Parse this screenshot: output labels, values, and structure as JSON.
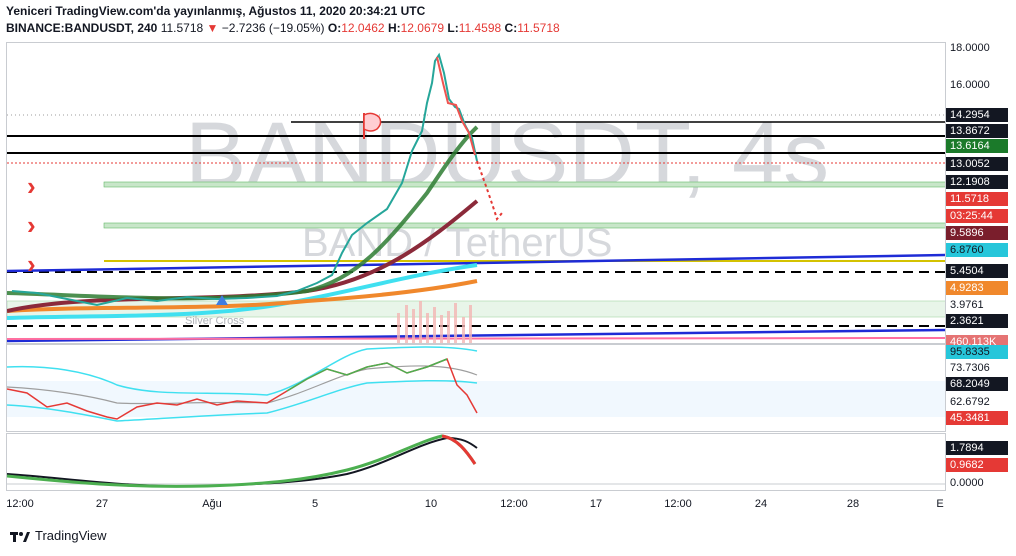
{
  "header": {
    "publish_line": "Yeniceri TradingView.com'da yayınlanmış, Ağustos 11, 2020 20:34:21 UTC",
    "symbol": "BINANCE:BANDUSDT, 240",
    "last": "11.5718",
    "change_arrow": "▼",
    "change": "−2.7236 (−19.05%)",
    "o_label": "O:",
    "o_value": "12.0462",
    "h_label": "H:",
    "h_value": "12.0679",
    "l_label": "L:",
    "l_value": "11.4598",
    "c_label": "C:",
    "c_value": "11.5718"
  },
  "watermark": {
    "symbol": "BANDUSDT, 4s",
    "pair": "BAND / TetherUS"
  },
  "price_axis": {
    "ticks": [
      "18.0000",
      "16.0000"
    ],
    "labels": [
      {
        "text": "14.2954",
        "bg": "#131722",
        "fg": "#ffffff"
      },
      {
        "text": "13.8672",
        "bg": "#131722",
        "fg": "#ffffff"
      },
      {
        "text": "13.6164",
        "bg": "#1b7a2a",
        "fg": "#ffffff"
      },
      {
        "text": "13.0052",
        "bg": "#131722",
        "fg": "#ffffff"
      },
      {
        "text": "12.1908",
        "bg": "#131722",
        "fg": "#ffffff"
      },
      {
        "text": "11.5718",
        "bg": "#e53935",
        "fg": "#ffffff"
      },
      {
        "text": "03:25:44",
        "bg": "#e53935",
        "fg": "#ffffff"
      },
      {
        "text": "9.5896",
        "bg": "#7a1e2c",
        "fg": "#ffffff"
      },
      {
        "text": "6.8760",
        "bg": "#26c6da",
        "fg": "#131722"
      },
      {
        "text": "5.4504",
        "bg": "#131722",
        "fg": "#ffffff"
      },
      {
        "text": "4.9283",
        "bg": "#f0882c",
        "fg": "#ffffff"
      },
      {
        "text": "3.9761",
        "bg": "#ffffff",
        "fg": "#131722"
      },
      {
        "text": "2.3621",
        "bg": "#131722",
        "fg": "#ffffff"
      },
      {
        "text": "460.113K",
        "bg": "#e57373",
        "fg": "#ffffff"
      }
    ]
  },
  "rsi_axis": {
    "labels": [
      {
        "text": "95.8335",
        "bg": "#26c6da",
        "fg": "#131722"
      },
      {
        "text": "73.7306",
        "bg": "#ffffff",
        "fg": "#131722"
      },
      {
        "text": "68.2049",
        "bg": "#131722",
        "fg": "#ffffff"
      },
      {
        "text": "62.6792",
        "bg": "#ffffff",
        "fg": "#131722"
      },
      {
        "text": "45.3481",
        "bg": "#e53935",
        "fg": "#ffffff"
      }
    ]
  },
  "macd_axis": {
    "labels": [
      {
        "text": "1.7894",
        "bg": "#131722",
        "fg": "#ffffff"
      },
      {
        "text": "0.9682",
        "bg": "#e53935",
        "fg": "#ffffff"
      },
      {
        "text": "0.0000",
        "bg": "#ffffff",
        "fg": "#131722"
      }
    ]
  },
  "time_axis": [
    "12:00",
    "27",
    "Ağu",
    "5",
    "10",
    "12:00",
    "17",
    "12:00",
    "24",
    "28",
    "E"
  ],
  "indicator_label": "Silver Cross",
  "footer": {
    "brand": "TradingView"
  },
  "colors": {
    "up": "#26a69a",
    "down": "#ef5350",
    "ma_green": "#2e7d32",
    "ma_maroon": "#8b2a3a",
    "ma_cyan": "#40e0f0",
    "ma_orange": "#f0882c",
    "trend_blue": "#1e2bd6",
    "accent_red": "#e53935"
  }
}
